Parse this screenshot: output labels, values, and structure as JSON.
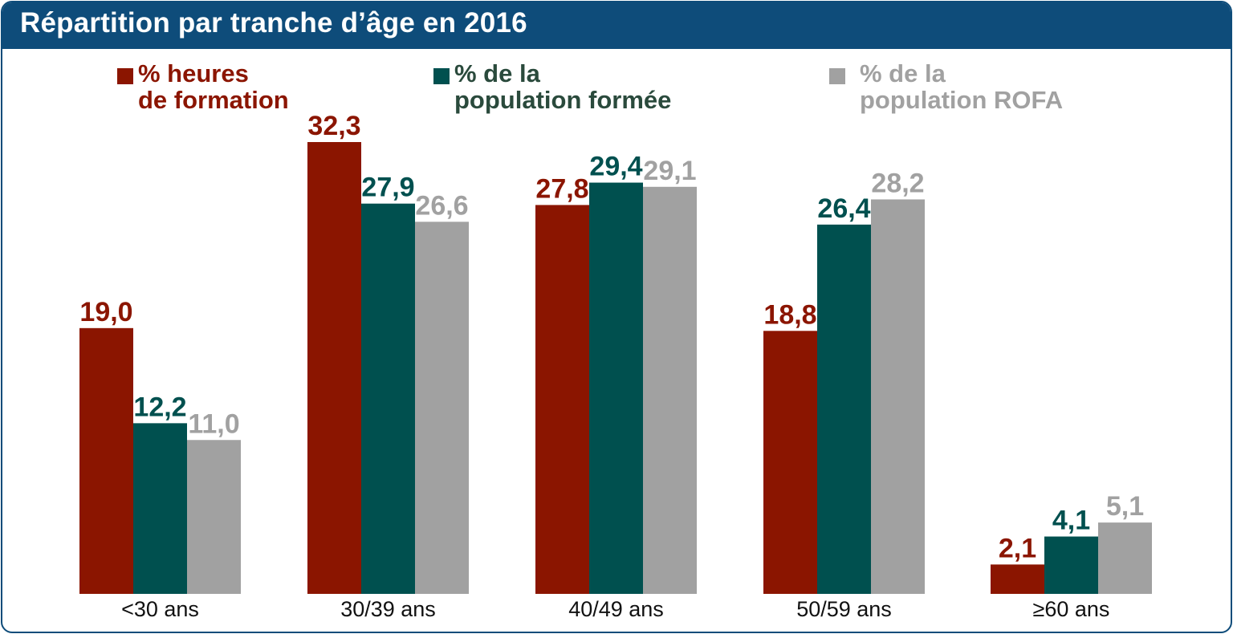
{
  "title": "Répartition par tranche d’âge en 2016",
  "colors": {
    "header_bg": "#0e4c7a",
    "heures": "#8b1500",
    "formee": "#00504f",
    "rofa": "#a1a1a1"
  },
  "legend": [
    {
      "label": "% heures\nde formation",
      "color": "#8b1500"
    },
    {
      "label": "% de la\npopulation formée",
      "color": "#00504f",
      "text_color": "#2a4a3c"
    },
    {
      "label": "% de la\npopulation ROFA",
      "color": "#a1a1a1"
    }
  ],
  "chart_data": {
    "type": "bar",
    "title": "Répartition par tranche d’âge en 2016",
    "categories": [
      "<30 ans",
      "30/39 ans",
      "40/49 ans",
      "50/59 ans",
      "≥60 ans"
    ],
    "series": [
      {
        "name": "% heures de formation",
        "values": [
          19.0,
          32.3,
          27.8,
          18.8,
          2.1
        ],
        "labels": [
          "19,0",
          "32,3",
          "27,8",
          "18,8",
          "2,1"
        ]
      },
      {
        "name": "% de la population formée",
        "values": [
          12.2,
          27.9,
          29.4,
          26.4,
          4.1
        ],
        "labels": [
          "12,2",
          "27,9",
          "29,4",
          "26,4",
          "4,1"
        ]
      },
      {
        "name": "% de la population ROFA",
        "values": [
          11.0,
          26.6,
          29.1,
          28.2,
          5.1
        ],
        "labels": [
          "11,0",
          "26,6",
          "29,1",
          "28,2",
          "5,1"
        ]
      }
    ],
    "xlabel": "",
    "ylabel": "",
    "ylim": [
      0,
      35
    ],
    "grid": false,
    "legend_position": "top"
  }
}
